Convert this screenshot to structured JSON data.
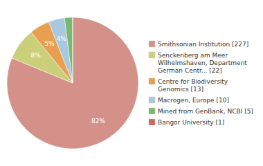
{
  "chart_data": {
    "type": "pie",
    "categories": [
      "Smithsonian Institution [227]",
      "Senckenberg am Meer\nWilhelmshaven, Department\nGerman Centr... [22]",
      "Centre for Biodiversity\nGenomics [13]",
      "Macrogen, Europe [10]",
      "Mined from GenBank, NCBI [5]",
      "Bangor University [1]"
    ],
    "values": [
      82,
      8,
      5,
      4,
      2,
      0
    ],
    "value_labels": [
      "82%",
      "8%",
      "5%",
      "4%",
      null,
      null
    ],
    "colors": [
      "#d4918a",
      "#cccf7a",
      "#e8a050",
      "#a8c8e0",
      "#7ab870",
      "#cc6655"
    ],
    "data_labels": true,
    "legend": "right"
  }
}
